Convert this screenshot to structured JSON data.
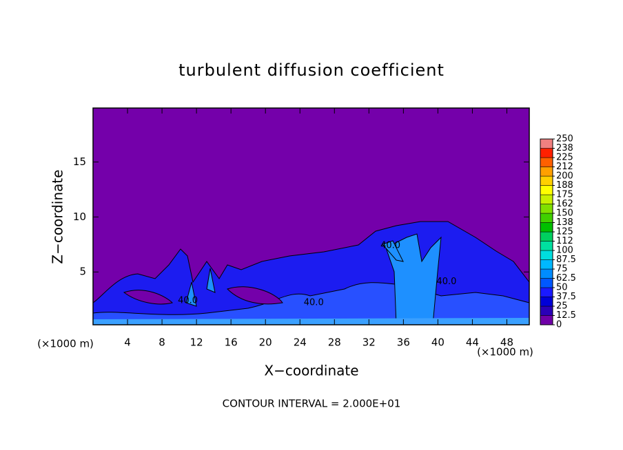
{
  "chart_data": {
    "type": "contour",
    "title": "turbulent diffusion coefficient",
    "xlabel": "X−coordinate",
    "ylabel": "Z−coordinate",
    "x_unit_label": "(×1000 m)",
    "y_unit_label": "(×1000 m)",
    "contour_interval_label": "CONTOUR INTERVAL = 2.000E+01",
    "xlim": [
      0,
      50.6
    ],
    "ylim": [
      0.2,
      19.9
    ],
    "xticks": [
      4,
      8,
      12,
      16,
      20,
      24,
      28,
      32,
      36,
      40,
      44,
      48
    ],
    "yticks": [
      5,
      10,
      15
    ],
    "contour_labels": [
      {
        "value": 40,
        "label": "40.0",
        "x": 11,
        "y": 2.4
      },
      {
        "value": 40,
        "label": "40.0",
        "x": 25.6,
        "y": 2.2
      },
      {
        "value": 40,
        "label": "40.0",
        "x": 34.5,
        "y": 7.4
      },
      {
        "value": 40,
        "label": "40.0",
        "x": 41,
        "y": 4.1
      }
    ],
    "colorbar": {
      "levels": [
        0,
        12.5,
        25,
        37.5,
        50,
        62.5,
        75,
        87.5,
        100,
        {
          "value": 112.5,
          "label": "112"
        },
        125,
        {
          "value": 137.5,
          "label": "138"
        },
        150,
        {
          "value": 162.5,
          "label": "162"
        },
        175,
        {
          "value": 187.5,
          "label": "188"
        },
        200,
        {
          "value": 212.5,
          "label": "212"
        },
        225,
        {
          "value": 237.5,
          "label": "238"
        },
        250
      ],
      "colors": [
        "#7000a8",
        "#2a00b8",
        "#0000d8",
        "#1a1aff",
        "#0058ff",
        "#008cff",
        "#00b8ff",
        "#00dede",
        "#00e0a0",
        "#00d060",
        "#00c000",
        "#40d000",
        "#80e000",
        "#c8f000",
        "#ffff00",
        "#ffd000",
        "#ffa000",
        "#ff6000",
        "#ff2000",
        "#f08080"
      ]
    }
  }
}
